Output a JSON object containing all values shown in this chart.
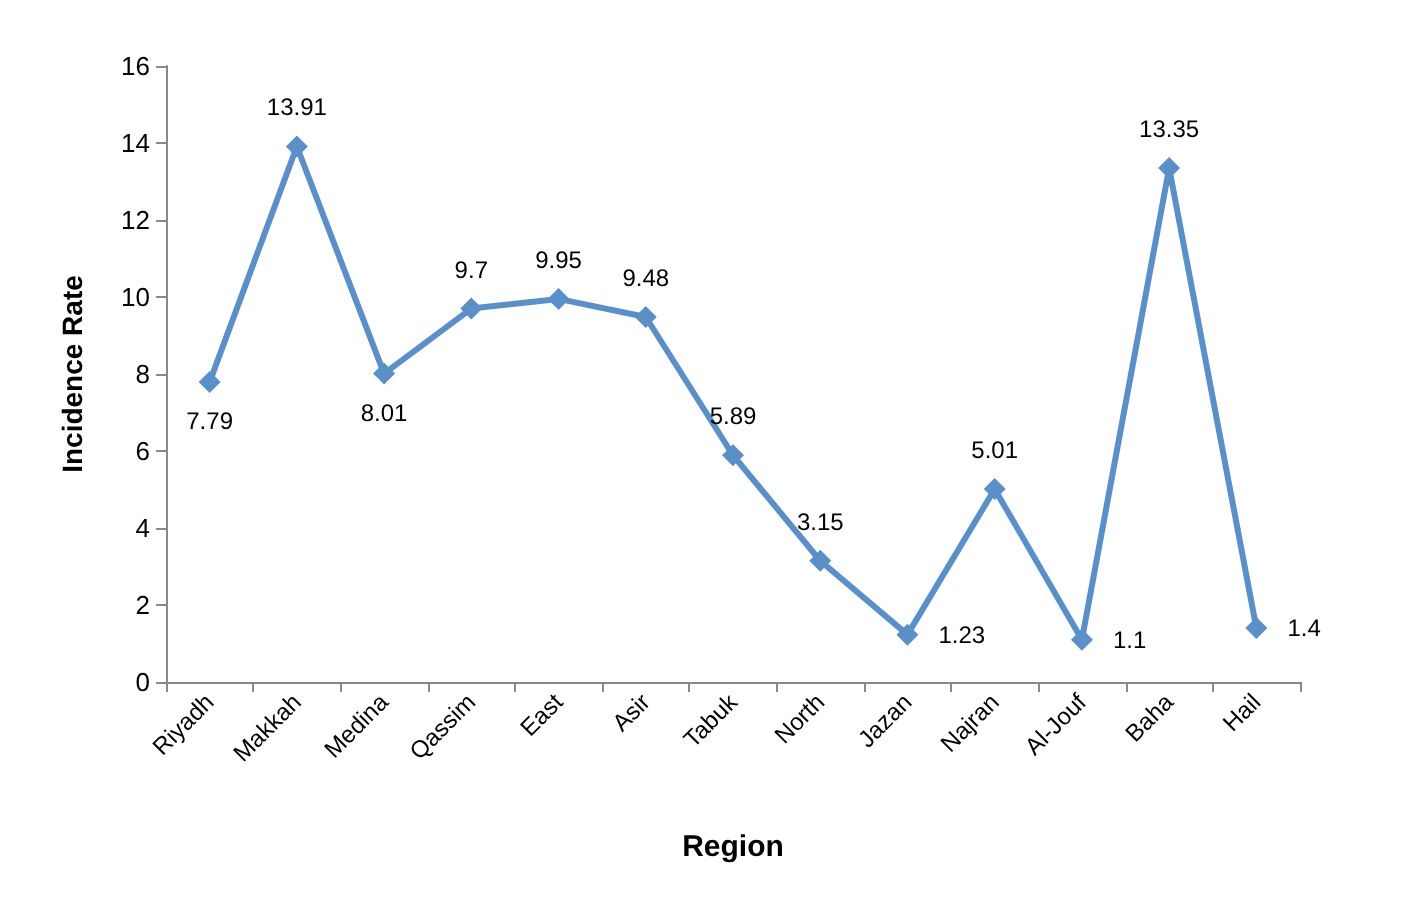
{
  "chart_data": {
    "type": "line",
    "xlabel": "Region",
    "ylabel": "Incidence Rate",
    "categories": [
      "Riyadh",
      "Makkah",
      "Medina",
      "Qassim",
      "East",
      "Asir",
      "Tabuk",
      "North",
      "Jazan",
      "Najran",
      "Al-Jouf",
      "Baha",
      "Hail"
    ],
    "series": [
      {
        "color": "#5b8fc7",
        "values": [
          7.79,
          13.91,
          8.01,
          9.7,
          9.95,
          9.48,
          5.89,
          3.15,
          1.23,
          5.01,
          1.1,
          13.35,
          1.4
        ]
      }
    ],
    "ylim": [
      0,
      16
    ],
    "yticks": [
      0,
      2,
      4,
      6,
      8,
      10,
      12,
      14,
      16
    ],
    "grid": false,
    "marker": "diamond",
    "line_style": "solid",
    "data_labels": true
  }
}
